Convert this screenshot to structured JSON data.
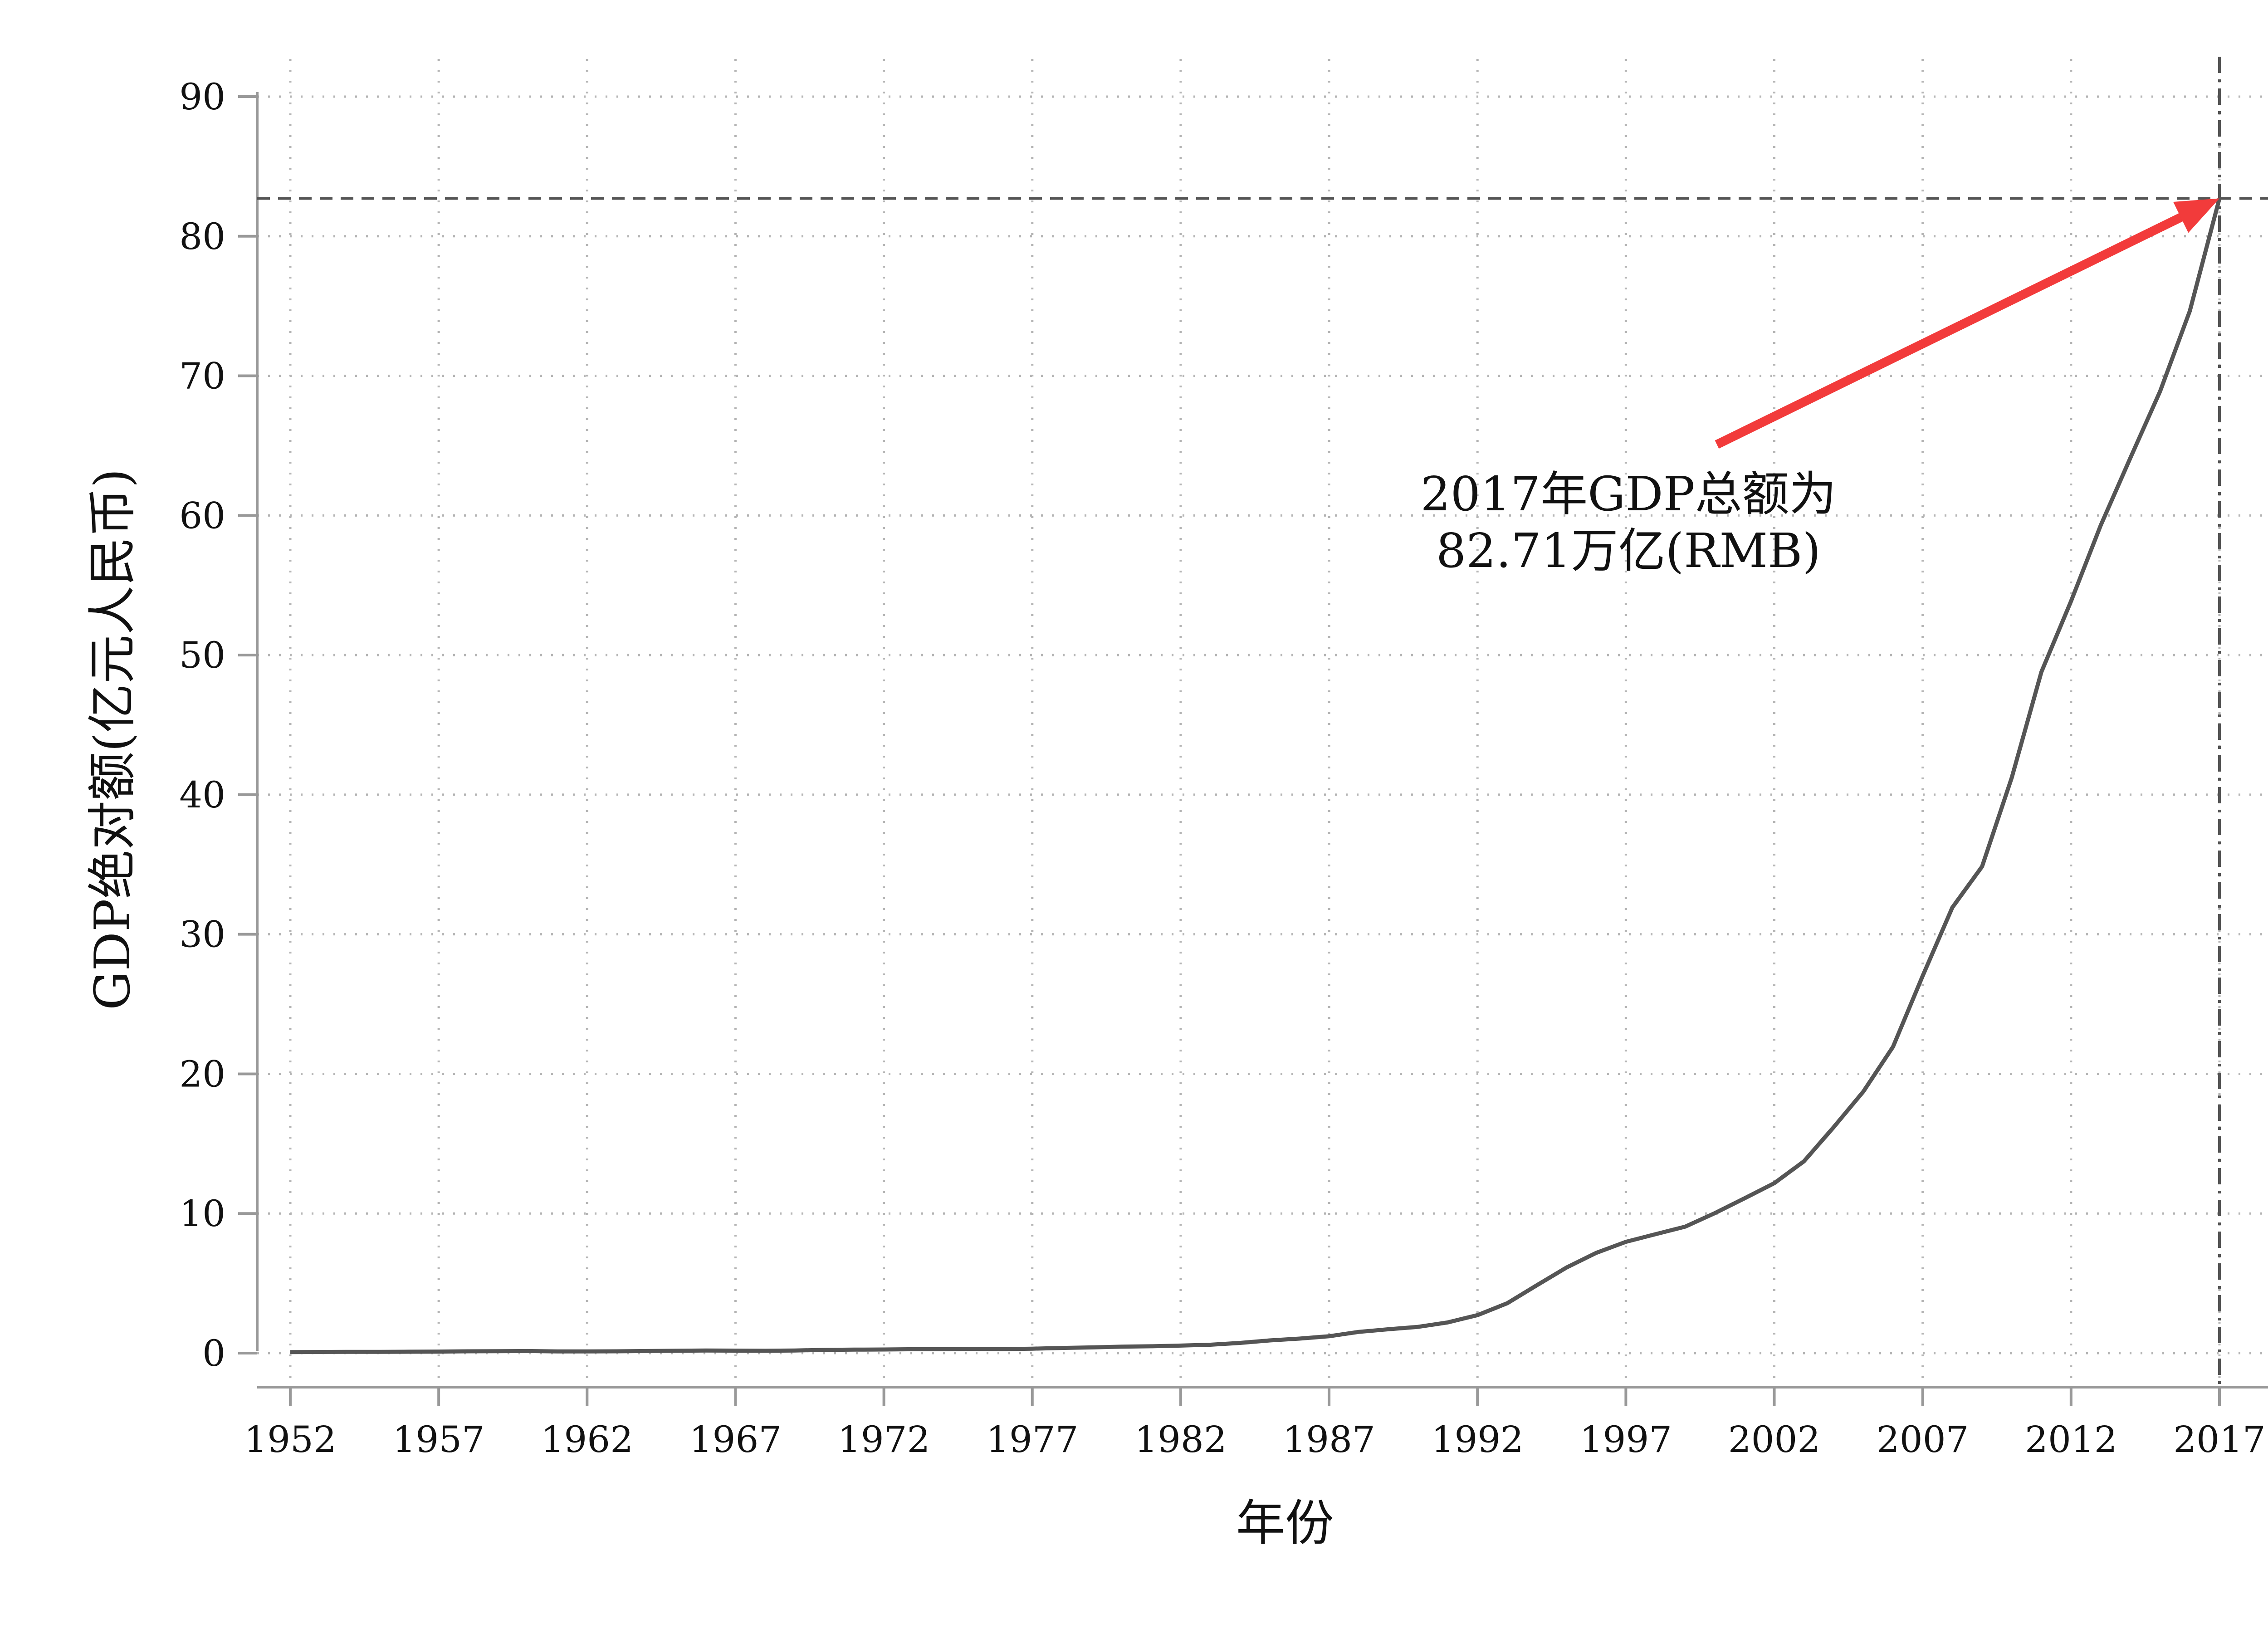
{
  "chart_data": {
    "type": "line",
    "title": "",
    "xlabel": "年份",
    "ylabel": "GDP绝对额(亿元人民币)",
    "xlim": [
      1952,
      2017
    ],
    "ylim": [
      0,
      90
    ],
    "x_ticks": [
      "1952",
      "1957",
      "1962",
      "1967",
      "1972",
      "1977",
      "1982",
      "1987",
      "1992",
      "1997",
      "2002",
      "2007",
      "2012",
      "2017"
    ],
    "y_ticks": [
      "0",
      "10",
      "20",
      "30",
      "40",
      "50",
      "60",
      "70",
      "80",
      "90"
    ],
    "grid": true,
    "series": [
      {
        "x": [
          1952,
          1953,
          1954,
          1955,
          1956,
          1957,
          1958,
          1959,
          1960,
          1961,
          1962,
          1963,
          1964,
          1965,
          1966,
          1967,
          1968,
          1969,
          1970,
          1971,
          1972,
          1973,
          1974,
          1975,
          1976,
          1977,
          1978,
          1979,
          1980,
          1981,
          1982,
          1983,
          1984,
          1985,
          1986,
          1987,
          1988,
          1989,
          1990,
          1991,
          1992,
          1993,
          1994,
          1995,
          1996,
          1997,
          1998,
          1999,
          2000,
          2001,
          2002,
          2003,
          2004,
          2005,
          2006,
          2007,
          2008,
          2009,
          2010,
          2011,
          2012,
          2013,
          2014,
          2015,
          2016,
          2017
        ],
        "y": [
          0.07,
          0.08,
          0.09,
          0.09,
          0.1,
          0.11,
          0.13,
          0.14,
          0.15,
          0.12,
          0.12,
          0.13,
          0.15,
          0.17,
          0.19,
          0.18,
          0.17,
          0.19,
          0.23,
          0.25,
          0.26,
          0.28,
          0.28,
          0.3,
          0.29,
          0.32,
          0.37,
          0.41,
          0.46,
          0.49,
          0.54,
          0.6,
          0.73,
          0.91,
          1.04,
          1.21,
          1.52,
          1.71,
          1.88,
          2.2,
          2.72,
          3.57,
          4.86,
          6.13,
          7.18,
          7.97,
          8.52,
          9.06,
          10.03,
          11.09,
          12.17,
          13.74,
          16.18,
          18.73,
          21.94,
          27.02,
          31.92,
          34.85,
          41.21,
          48.79,
          53.86,
          59.3,
          64.13,
          68.89,
          74.64,
          82.71
        ]
      }
    ],
    "reference_lines": [
      {
        "axis": "y",
        "value": 82.71
      },
      {
        "axis": "x",
        "value": 2017
      }
    ],
    "annotations": [
      {
        "text_line1": "2017年GDP总额为",
        "text_line2": "82.71万亿(RMB)",
        "arrow_to": [
          2017,
          82.71
        ],
        "color": "#f23b3b"
      }
    ],
    "colors": {
      "line": "#555555",
      "arrow": "#f23b3b",
      "grid": "#b5b5b5",
      "axis": "#999999",
      "reference": "#555555"
    }
  }
}
